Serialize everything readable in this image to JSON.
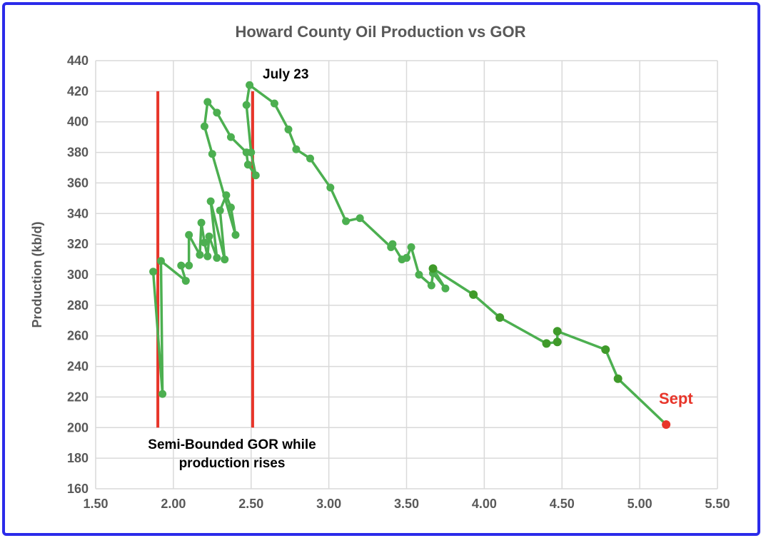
{
  "chart_data": {
    "type": "line",
    "title": "Howard County Oil Production vs GOR",
    "xlabel": "",
    "ylabel": "Production (kb/d)",
    "xlim": [
      1.5,
      5.5
    ],
    "ylim": [
      160,
      440
    ],
    "xticks": [
      "1.50",
      "2.00",
      "2.50",
      "3.00",
      "3.50",
      "4.00",
      "4.50",
      "5.00",
      "5.50"
    ],
    "yticks": [
      "160",
      "180",
      "200",
      "220",
      "240",
      "260",
      "280",
      "300",
      "320",
      "340",
      "360",
      "380",
      "400",
      "420",
      "440"
    ],
    "grid": true,
    "colors": {
      "line": "#4caf50",
      "dark_marker": "#3f9a2a",
      "last_point": "#e8352a",
      "ref_line": "#e8352a",
      "title": "#595959",
      "frame": "#2b2bea"
    },
    "series": [
      {
        "name": "Howard County",
        "points": [
          [
            1.87,
            302
          ],
          [
            1.93,
            222
          ],
          [
            1.92,
            309
          ],
          [
            2.08,
            296
          ],
          [
            2.05,
            306
          ],
          [
            2.1,
            306
          ],
          [
            2.1,
            326
          ],
          [
            2.17,
            313
          ],
          [
            2.18,
            334
          ],
          [
            2.2,
            321
          ],
          [
            2.22,
            312
          ],
          [
            2.23,
            325
          ],
          [
            2.28,
            311
          ],
          [
            2.24,
            348
          ],
          [
            2.33,
            310
          ],
          [
            2.3,
            342
          ],
          [
            2.34,
            352
          ],
          [
            2.37,
            344
          ],
          [
            2.4,
            326
          ],
          [
            2.25,
            379
          ],
          [
            2.2,
            397
          ],
          [
            2.22,
            413
          ],
          [
            2.28,
            406
          ],
          [
            2.37,
            390
          ],
          [
            2.47,
            380
          ],
          [
            2.48,
            372
          ],
          [
            2.53,
            365
          ],
          [
            2.5,
            380
          ],
          [
            2.47,
            411
          ],
          [
            2.49,
            424
          ],
          [
            2.65,
            412
          ],
          [
            2.74,
            395
          ],
          [
            2.79,
            382
          ],
          [
            2.88,
            376
          ],
          [
            3.01,
            357
          ],
          [
            3.11,
            335
          ],
          [
            3.2,
            337
          ],
          [
            3.4,
            318
          ],
          [
            3.41,
            320
          ],
          [
            3.47,
            310
          ],
          [
            3.5,
            311
          ],
          [
            3.53,
            318
          ],
          [
            3.58,
            300
          ],
          [
            3.66,
            293
          ],
          [
            3.67,
            301
          ],
          [
            3.75,
            291
          ],
          [
            3.67,
            304
          ],
          [
            3.93,
            287
          ],
          [
            4.1,
            272
          ],
          [
            4.4,
            255
          ],
          [
            4.47,
            256
          ],
          [
            4.47,
            263
          ],
          [
            4.78,
            251
          ],
          [
            4.86,
            232
          ],
          [
            5.17,
            202
          ]
        ],
        "dark_from_index": 46
      }
    ],
    "reference_lines": [
      {
        "x": 1.9,
        "y_range": [
          200,
          420
        ]
      },
      {
        "x": 2.51,
        "y_range": [
          200,
          420
        ]
      }
    ],
    "annotations": {
      "july": "July 23",
      "sept": "Sept",
      "semi_line1": "Semi-Bounded GOR while",
      "semi_line2": "production rises"
    }
  }
}
